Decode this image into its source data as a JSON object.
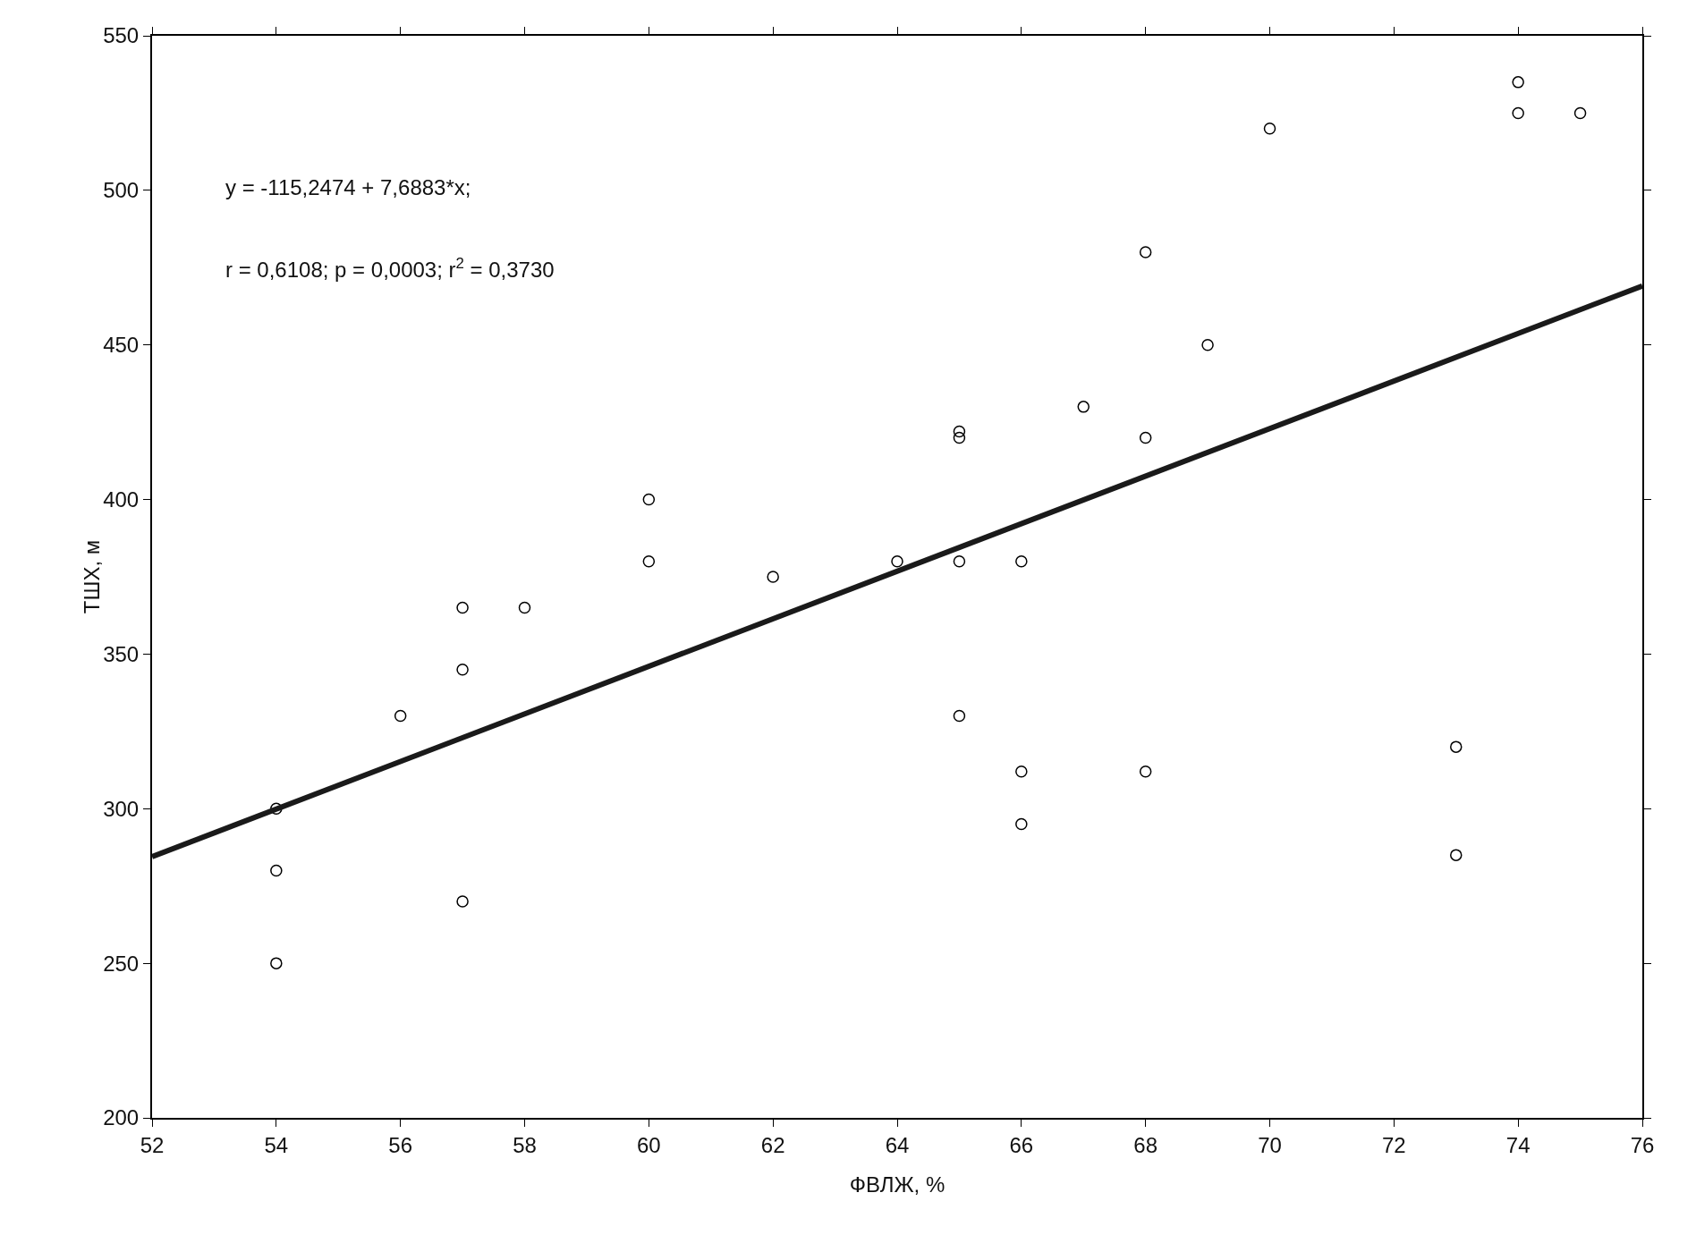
{
  "chart_data": {
    "type": "scatter",
    "xlabel": "ФВЛЖ, %",
    "ylabel": "ТШХ, м",
    "xlim": [
      52,
      76
    ],
    "xticks": [
      52,
      54,
      56,
      58,
      60,
      62,
      64,
      66,
      68,
      70,
      72,
      74,
      76
    ],
    "ylim": [
      200,
      550
    ],
    "yticks": [
      200,
      250,
      300,
      350,
      400,
      450,
      500,
      550
    ],
    "grid": false,
    "annotations": [
      "y = -115,2474 + 7,6883*x;",
      "r = 0,6108; p = 0,0003; r$^{2}$ = 0,3730"
    ],
    "series": [
      {
        "color": "#000000",
        "marker": "circle",
        "x": [
          54,
          54,
          54,
          56,
          57,
          57,
          57,
          58,
          60,
          60,
          62,
          64,
          65,
          65,
          65,
          65,
          66,
          66,
          66,
          67,
          68,
          68,
          68,
          69,
          70,
          73,
          73,
          74,
          74,
          75
        ],
        "values": [
          300,
          280,
          250,
          330,
          365,
          345,
          270,
          365,
          400,
          380,
          375,
          380,
          422,
          420,
          380,
          330,
          380,
          312,
          295,
          430,
          480,
          420,
          312,
          450,
          520,
          320,
          285,
          535,
          525,
          525
        ]
      },
      {
        "type": "line",
        "color": "#1a1a1a",
        "x": [
          52,
          76
        ],
        "values": [
          284.5,
          469.1
        ],
        "line_style": "solid"
      }
    ]
  }
}
